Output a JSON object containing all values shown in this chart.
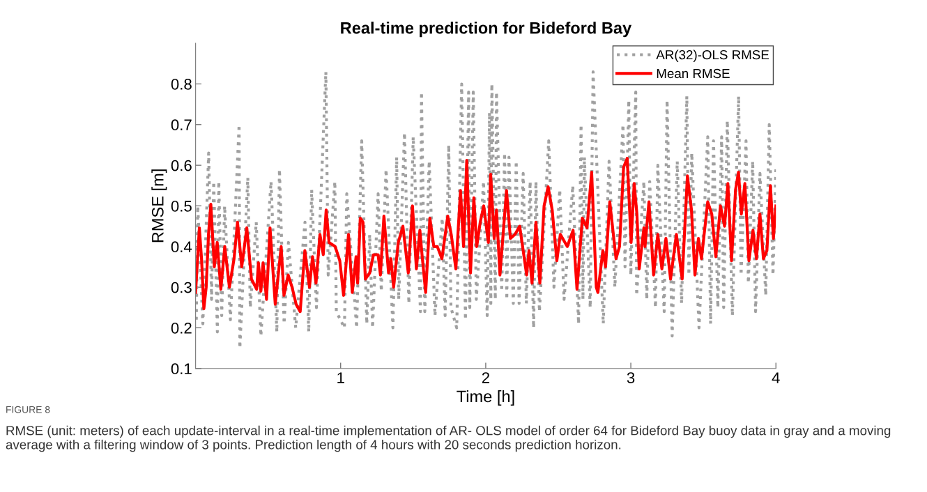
{
  "chart_data": {
    "type": "line",
    "title": "Real-time prediction for Bideford Bay",
    "xlabel": "Time [h]",
    "ylabel": "RMSE [m]",
    "xlim": [
      0,
      4
    ],
    "xticks": [
      1,
      2,
      3,
      4
    ],
    "ylim": [
      0.1,
      0.9
    ],
    "yticks": [
      0.1,
      0.2,
      0.3,
      0.4,
      0.5,
      0.6,
      0.7,
      0.8
    ],
    "grid": false,
    "legend": "top right",
    "series": [
      {
        "name": "AR(32)-OLS RMSE",
        "color": "#a0a0a0",
        "line_style": "dotted",
        "x": [
          0.005,
          0.015,
          0.05,
          0.09,
          0.11,
          0.125,
          0.15,
          0.16,
          0.18,
          0.2,
          0.24,
          0.3,
          0.305,
          0.36,
          0.377,
          0.418,
          0.45,
          0.52,
          0.56,
          0.578,
          0.61,
          0.64,
          0.69,
          0.754,
          0.78,
          0.8,
          0.833,
          0.898,
          0.914,
          0.96,
          0.97,
          1.026,
          1.042,
          1.11,
          1.145,
          1.18,
          1.2,
          1.22,
          1.258,
          1.28,
          1.313,
          1.36,
          1.386,
          1.4,
          1.44,
          1.47,
          1.5,
          1.55,
          1.557,
          1.58,
          1.61,
          1.65,
          1.7,
          1.72,
          1.745,
          1.76,
          1.8,
          1.834,
          1.86,
          1.882,
          1.89,
          1.914,
          1.935,
          1.985,
          2.01,
          2.026,
          2.035,
          2.042,
          2.066,
          2.074,
          2.11,
          2.13,
          2.145,
          2.16,
          2.19,
          2.21,
          2.23,
          2.258,
          2.28,
          2.306,
          2.33,
          2.346,
          2.37,
          2.434,
          2.47,
          2.51,
          2.54,
          2.6,
          2.64,
          2.657,
          2.67,
          2.68,
          2.72,
          2.74,
          2.81,
          2.85,
          2.89,
          2.946,
          2.96,
          2.986,
          3.0,
          3.034,
          3.04,
          3.09,
          3.11,
          3.13,
          3.17,
          3.186,
          3.23,
          3.25,
          3.285,
          3.32,
          3.35,
          3.386,
          3.4,
          3.42,
          3.47,
          3.53,
          3.55,
          3.57,
          3.6,
          3.626,
          3.64,
          3.665,
          3.7,
          3.743,
          3.76,
          3.794,
          3.81,
          3.84,
          3.86,
          3.89,
          3.93,
          3.954,
          3.98,
          4.0
        ],
        "values": [
          0.22,
          0.5,
          0.21,
          0.63,
          0.27,
          0.56,
          0.19,
          0.56,
          0.23,
          0.5,
          0.22,
          0.7,
          0.15,
          0.57,
          0.25,
          0.46,
          0.18,
          0.56,
          0.19,
          0.59,
          0.21,
          0.41,
          0.2,
          0.46,
          0.19,
          0.54,
          0.25,
          0.83,
          0.33,
          0.56,
          0.24,
          0.2,
          0.53,
          0.2,
          0.66,
          0.21,
          0.43,
          0.2,
          0.53,
          0.29,
          0.59,
          0.2,
          0.62,
          0.27,
          0.68,
          0.26,
          0.67,
          0.24,
          0.78,
          0.24,
          0.61,
          0.23,
          0.47,
          0.23,
          0.65,
          0.25,
          0.2,
          0.8,
          0.22,
          0.78,
          0.25,
          0.78,
          0.27,
          0.56,
          0.23,
          0.73,
          0.26,
          0.8,
          0.27,
          0.78,
          0.29,
          0.63,
          0.27,
          0.62,
          0.26,
          0.61,
          0.26,
          0.58,
          0.26,
          0.56,
          0.2,
          0.56,
          0.24,
          0.66,
          0.3,
          0.54,
          0.27,
          0.55,
          0.21,
          0.7,
          0.27,
          0.62,
          0.25,
          0.83,
          0.21,
          0.61,
          0.3,
          0.7,
          0.35,
          0.76,
          0.33,
          0.78,
          0.28,
          0.56,
          0.27,
          0.56,
          0.25,
          0.6,
          0.24,
          0.76,
          0.18,
          0.61,
          0.26,
          0.77,
          0.33,
          0.63,
          0.2,
          0.67,
          0.21,
          0.66,
          0.25,
          0.67,
          0.25,
          0.71,
          0.23,
          0.77,
          0.33,
          0.66,
          0.31,
          0.61,
          0.24,
          0.58,
          0.28,
          0.7,
          0.33,
          0.59
        ]
      },
      {
        "name": "Mean RMSE",
        "color": "#ff0000",
        "line_style": "solid",
        "x": [
          0.0,
          0.026,
          0.041,
          0.057,
          0.073,
          0.089,
          0.105,
          0.129,
          0.149,
          0.174,
          0.201,
          0.233,
          0.265,
          0.289,
          0.318,
          0.353,
          0.385,
          0.421,
          0.433,
          0.45,
          0.465,
          0.489,
          0.513,
          0.549,
          0.59,
          0.609,
          0.638,
          0.665,
          0.693,
          0.721,
          0.753,
          0.785,
          0.806,
          0.83,
          0.857,
          0.88,
          0.9,
          0.92,
          0.962,
          0.994,
          1.02,
          1.054,
          1.08,
          1.106,
          1.117,
          1.135,
          1.154,
          1.17,
          1.2,
          1.226,
          1.258,
          1.274,
          1.298,
          1.33,
          1.346,
          1.365,
          1.397,
          1.429,
          1.466,
          1.495,
          1.522,
          1.546,
          1.562,
          1.586,
          1.615,
          1.642,
          1.666,
          1.698,
          1.738,
          1.762,
          1.794,
          1.826,
          1.847,
          1.869,
          1.895,
          1.918,
          1.938,
          1.962,
          1.986,
          2.018,
          2.034,
          2.058,
          2.074,
          2.098,
          2.143,
          2.17,
          2.202,
          2.234,
          2.282,
          2.298,
          2.319,
          2.346,
          2.373,
          2.402,
          2.43,
          2.458,
          2.49,
          2.514,
          2.562,
          2.602,
          2.629,
          2.666,
          2.698,
          2.73,
          2.762,
          2.773,
          2.807,
          2.826,
          2.855,
          2.898,
          2.922,
          2.95,
          2.975,
          3.002,
          3.023,
          3.042,
          3.058,
          3.09,
          3.098,
          3.125,
          3.157,
          3.186,
          3.214,
          3.242,
          3.274,
          3.314,
          3.354,
          3.39,
          3.418,
          3.442,
          3.466,
          3.487,
          3.53,
          3.558,
          3.586,
          3.618,
          3.646,
          3.669,
          3.694,
          3.722,
          3.742,
          3.762,
          3.786,
          3.814,
          3.842,
          3.866,
          3.89,
          3.914,
          3.938,
          3.962,
          3.983,
          4.0
        ],
        "values": [
          0.287,
          0.446,
          0.37,
          0.247,
          0.3,
          0.43,
          0.504,
          0.35,
          0.41,
          0.295,
          0.4,
          0.3,
          0.37,
          0.46,
          0.35,
          0.446,
          0.32,
          0.295,
          0.36,
          0.29,
          0.36,
          0.27,
          0.446,
          0.258,
          0.4,
          0.28,
          0.33,
          0.3,
          0.258,
          0.24,
          0.39,
          0.3,
          0.375,
          0.31,
          0.43,
          0.38,
          0.49,
          0.41,
          0.4,
          0.365,
          0.28,
          0.43,
          0.287,
          0.375,
          0.31,
          0.47,
          0.46,
          0.32,
          0.335,
          0.38,
          0.38,
          0.33,
          0.475,
          0.335,
          0.37,
          0.3,
          0.41,
          0.45,
          0.335,
          0.5,
          0.345,
          0.44,
          0.375,
          0.287,
          0.47,
          0.4,
          0.4,
          0.37,
          0.475,
          0.43,
          0.345,
          0.538,
          0.4,
          0.612,
          0.335,
          0.52,
          0.4,
          0.46,
          0.5,
          0.41,
          0.578,
          0.42,
          0.49,
          0.33,
          0.538,
          0.42,
          0.43,
          0.45,
          0.33,
          0.39,
          0.31,
          0.46,
          0.31,
          0.5,
          0.547,
          0.49,
          0.365,
          0.43,
          0.4,
          0.44,
          0.295,
          0.47,
          0.446,
          0.583,
          0.3,
          0.287,
          0.39,
          0.35,
          0.51,
          0.37,
          0.4,
          0.595,
          0.617,
          0.41,
          0.555,
          0.48,
          0.345,
          0.446,
          0.4,
          0.51,
          0.33,
          0.43,
          0.345,
          0.42,
          0.32,
          0.43,
          0.32,
          0.574,
          0.49,
          0.33,
          0.42,
          0.37,
          0.51,
          0.48,
          0.375,
          0.5,
          0.45,
          0.555,
          0.365,
          0.54,
          0.583,
          0.48,
          0.555,
          0.365,
          0.44,
          0.37,
          0.48,
          0.37,
          0.39,
          0.55,
          0.42,
          0.5
        ]
      }
    ],
    "annotations": [
      "FIGURE 8",
      "RMSE (unit: meters) of each update-interval in a real-time implementation of AR- OLS model of order 64 for Bideford Bay buoy data in gray and a moving average with a filtering window of 3 points. Prediction length of 4 hours with 20 seconds prediction horizon."
    ]
  }
}
